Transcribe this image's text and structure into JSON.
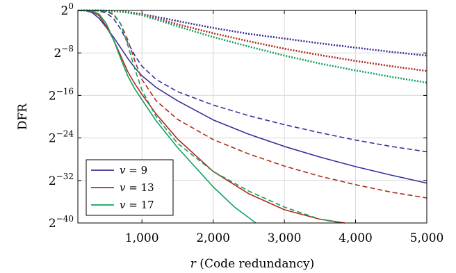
{
  "chart_data": {
    "type": "line",
    "xlabel_var": "r",
    "xlabel_text": " (Code redundancy)",
    "ylabel": "DFR",
    "xlim": [
      100,
      5000
    ],
    "ylim_log2": [
      -40,
      0
    ],
    "y_scale": "log2",
    "x_ticks": [
      1000,
      2000,
      3000,
      4000,
      5000
    ],
    "x_tick_labels": [
      "1,000",
      "2,000",
      "3,000",
      "4,000",
      "5,000"
    ],
    "y_ticks_log2": [
      0,
      -8,
      -16,
      -24,
      -32,
      -40
    ],
    "y_tick_base": "2",
    "y_tick_exps": [
      "0",
      "−8",
      "−16",
      "−24",
      "−32",
      "−40"
    ],
    "grid": true,
    "legend_position": "bottom-left",
    "legend": [
      {
        "var": "v",
        "label": " = 9",
        "color": "#3a2f9a"
      },
      {
        "var": "v",
        "label": " = 13",
        "color": "#b02a1a"
      },
      {
        "var": "v",
        "label": " = 17",
        "color": "#10a060"
      }
    ],
    "series": [
      {
        "color": "#3a2f9a",
        "style": "solid",
        "x": [
          100,
          200,
          300,
          400,
          500,
          600,
          700,
          800,
          900,
          1000,
          1200,
          1500,
          2000,
          2500,
          3000,
          3500,
          4000,
          4500,
          5000
        ],
        "y_log2": [
          0,
          0,
          -0.4,
          -1.5,
          -3.2,
          -5.0,
          -7.0,
          -9.0,
          -10.8,
          -12.3,
          -14.5,
          -17.0,
          -20.6,
          -23.3,
          -25.6,
          -27.6,
          -29.4,
          -31.0,
          -32.5
        ]
      },
      {
        "color": "#3a2f9a",
        "style": "dashed",
        "x": [
          100,
          300,
          400,
          500,
          600,
          700,
          800,
          900,
          1000,
          1200,
          1500,
          2000,
          2500,
          3000,
          3500,
          4000,
          4500,
          5000
        ],
        "y_log2": [
          0,
          0,
          -0.1,
          -0.5,
          -1.5,
          -3.5,
          -6.0,
          -8.5,
          -10.5,
          -13.0,
          -15.3,
          -17.8,
          -19.8,
          -21.5,
          -23.0,
          -24.4,
          -25.6,
          -26.6
        ]
      },
      {
        "color": "#3a2f9a",
        "style": "dotted",
        "x": [
          100,
          400,
          600,
          800,
          1000,
          1200,
          1500,
          2000,
          2500,
          3000,
          3500,
          4000,
          4500,
          5000
        ],
        "y_log2": [
          0,
          0,
          -0.1,
          -0.3,
          -0.7,
          -1.2,
          -2.0,
          -3.3,
          -4.4,
          -5.3,
          -6.2,
          -7.0,
          -7.8,
          -8.5
        ]
      },
      {
        "color": "#b02a1a",
        "style": "solid",
        "x": [
          100,
          200,
          300,
          400,
          500,
          600,
          700,
          800,
          900,
          1000,
          1200,
          1500,
          2000,
          2500,
          3000,
          3500,
          3850
        ],
        "y_log2": [
          0,
          0,
          -0.2,
          -1.0,
          -3.0,
          -5.5,
          -8.5,
          -11.5,
          -13.8,
          -15.8,
          -19.5,
          -24.2,
          -30.3,
          -34.5,
          -37.5,
          -39.3,
          -40.0
        ]
      },
      {
        "color": "#b02a1a",
        "style": "dashed",
        "x": [
          100,
          400,
          500,
          600,
          700,
          800,
          900,
          1000,
          1200,
          1500,
          2000,
          2500,
          3000,
          3500,
          4000,
          4500,
          5000
        ],
        "y_log2": [
          0,
          0,
          -0.2,
          -0.8,
          -2.5,
          -5.5,
          -9.5,
          -13.0,
          -17.0,
          -20.5,
          -24.3,
          -27.0,
          -29.3,
          -31.2,
          -32.8,
          -34.2,
          -35.3
        ]
      },
      {
        "color": "#b02a1a",
        "style": "dotted",
        "x": [
          100,
          400,
          600,
          800,
          1000,
          1200,
          1500,
          2000,
          2500,
          3000,
          3500,
          4000,
          4500,
          5000
        ],
        "y_log2": [
          0,
          0,
          -0.1,
          -0.3,
          -0.8,
          -1.5,
          -2.6,
          -4.3,
          -5.8,
          -7.2,
          -8.4,
          -9.5,
          -10.5,
          -11.4
        ]
      },
      {
        "color": "#10a060",
        "style": "solid",
        "x": [
          100,
          200,
          300,
          400,
          500,
          600,
          700,
          800,
          900,
          1000,
          1200,
          1500,
          2000,
          2300,
          2600
        ],
        "y_log2": [
          0,
          0,
          -0.1,
          -0.7,
          -2.5,
          -5.5,
          -9.0,
          -12.3,
          -14.8,
          -16.8,
          -20.8,
          -25.8,
          -33.2,
          -37.0,
          -40.0
        ]
      },
      {
        "color": "#10a060",
        "style": "dashed",
        "x": [
          100,
          400,
          500,
          600,
          700,
          800,
          900,
          1000,
          1200,
          1500,
          2000,
          2500,
          3000,
          3500,
          3800
        ],
        "y_log2": [
          0,
          0,
          -0.1,
          -0.6,
          -2.5,
          -6.5,
          -11.0,
          -15.0,
          -20.0,
          -25.0,
          -30.3,
          -34.0,
          -37.0,
          -39.3,
          -40.0
        ]
      },
      {
        "color": "#10a060",
        "style": "dotted",
        "x": [
          100,
          400,
          600,
          800,
          1000,
          1200,
          1500,
          2000,
          2500,
          3000,
          3500,
          4000,
          4500,
          5000
        ],
        "y_log2": [
          0,
          0,
          -0.1,
          -0.4,
          -0.9,
          -1.7,
          -3.0,
          -5.0,
          -6.8,
          -8.5,
          -10.0,
          -11.3,
          -12.5,
          -13.6
        ]
      }
    ]
  }
}
